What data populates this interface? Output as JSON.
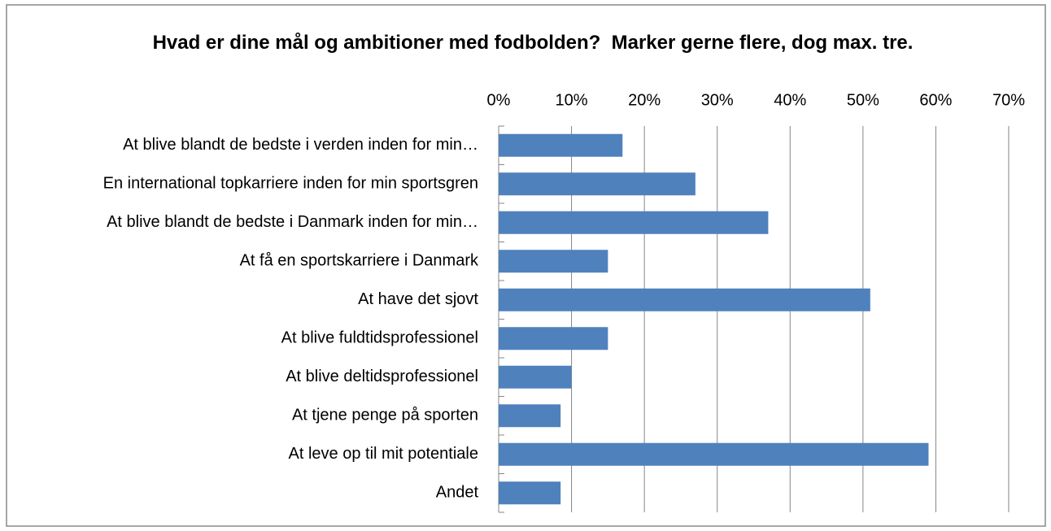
{
  "chart_data": {
    "type": "bar",
    "orientation": "horizontal",
    "title": "Hvad er dine mål og ambitioner med fodbolden?  Marker gerne flere, dog max. tre.",
    "categories": [
      "At blive blandt de bedste i verden inden for min…",
      "En international topkarriere inden for min sportsgren",
      "At blive blandt de bedste i Danmark inden for min…",
      "At få en sportskarriere i Danmark",
      "At have det sjovt",
      "At blive fuldtidsprofessionel",
      "At blive deltidsprofessionel",
      "At tjene penge på sporten",
      "At leve op til mit potentiale",
      "Andet"
    ],
    "values": [
      17,
      27,
      37,
      15,
      51,
      15,
      10,
      8.5,
      59,
      8.5
    ],
    "color": "#4f81bd",
    "xlim": [
      0,
      70
    ],
    "xticks": [
      {
        "value": 0,
        "label": "0%"
      },
      {
        "value": 10,
        "label": "10%"
      },
      {
        "value": 20,
        "label": "20%"
      },
      {
        "value": 30,
        "label": "30%"
      },
      {
        "value": 40,
        "label": "40%"
      },
      {
        "value": 50,
        "label": "50%"
      },
      {
        "value": 60,
        "label": "60%"
      },
      {
        "value": 70,
        "label": "70%"
      }
    ],
    "grid": true
  }
}
